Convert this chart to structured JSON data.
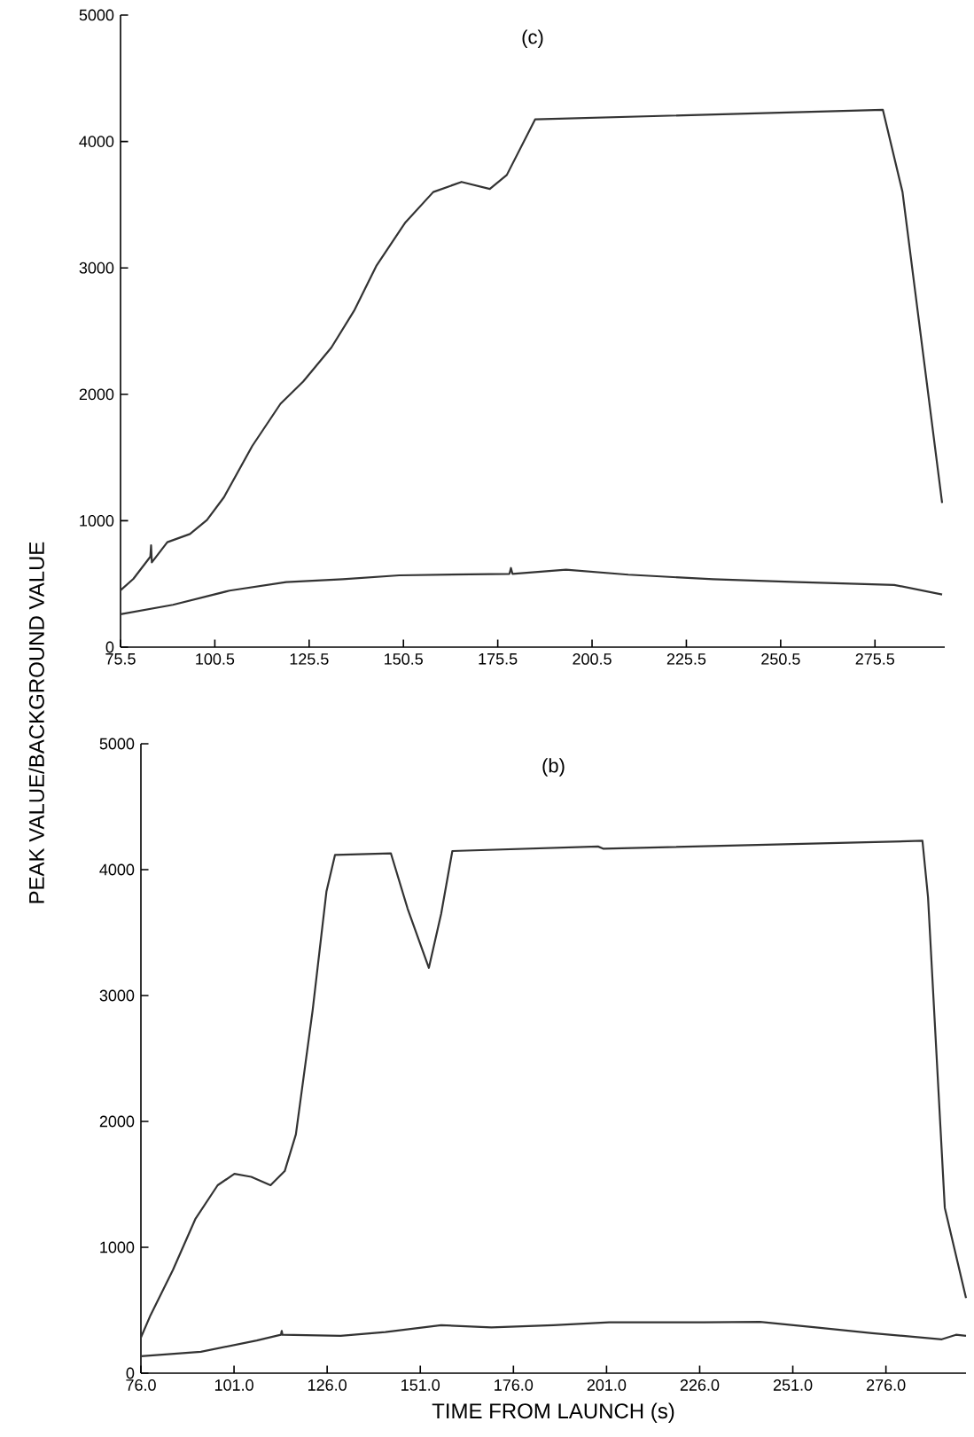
{
  "chart_data": [
    {
      "type": "line",
      "title": "(c)",
      "ylabel": "PEAK VALUE/BACKGROUND VALUE",
      "xlim": [
        75.5,
        294
      ],
      "ylim": [
        0,
        5000
      ],
      "xticks": [
        {
          "value": 75.5,
          "label": "75.5"
        },
        {
          "value": 100.5,
          "label": "100.5"
        },
        {
          "value": 125.5,
          "label": "125.5"
        },
        {
          "value": 150.5,
          "label": "150.5"
        },
        {
          "value": 175.5,
          "label": "175.5"
        },
        {
          "value": 200.5,
          "label": "200.5"
        },
        {
          "value": 225.5,
          "label": "225.5"
        },
        {
          "value": 250.5,
          "label": "250.5"
        },
        {
          "value": 275.5,
          "label": "275.5"
        }
      ],
      "yticks": [
        0,
        1000,
        2000,
        3000,
        4000,
        5000
      ],
      "grid": false,
      "marker": "none",
      "line_style": "solid",
      "series": [
        {
          "color": "#333333",
          "x": [
            75.5,
            78.9,
            83.4,
            83.6,
            83.8,
            87.9,
            93.9,
            98.4,
            102.9,
            110.4,
            117.9,
            123.9,
            131.4,
            137.4,
            143.4,
            150.9,
            158.4,
            165.9,
            173.4,
            177.9,
            185.4,
            277.6,
            282.8,
            293.3
          ],
          "values": [
            450,
            540,
            715,
            805,
            670,
            830,
            895,
            1005,
            1185,
            1590,
            1925,
            2100,
            2370,
            2660,
            3020,
            3355,
            3600,
            3680,
            3625,
            3735,
            4175,
            4250,
            3600,
            1140
          ]
        },
        {
          "color": "#333333",
          "x": [
            75.5,
            89.4,
            104.4,
            119.4,
            134.4,
            149.4,
            178.6,
            179.0,
            179.4,
            193.6,
            210.1,
            232.6,
            255.1,
            280.6,
            293.3
          ],
          "values": [
            260,
            335,
            447,
            515,
            537,
            568,
            580,
            626,
            580,
            613,
            573,
            537,
            515,
            492,
            416
          ]
        }
      ]
    },
    {
      "type": "line",
      "title": "(b)",
      "xlabel": "TIME FROM LAUNCH (s)",
      "xlim": [
        76,
        297.5
      ],
      "ylim": [
        0,
        5000
      ],
      "xticks": [
        {
          "value": 76,
          "label": "76.0"
        },
        {
          "value": 101,
          "label": "101.0"
        },
        {
          "value": 126,
          "label": "126.0"
        },
        {
          "value": 151,
          "label": "151.0"
        },
        {
          "value": 176,
          "label": "176.0"
        },
        {
          "value": 201,
          "label": "201.0"
        },
        {
          "value": 226,
          "label": "226.0"
        },
        {
          "value": 251,
          "label": "251.0"
        },
        {
          "value": 276,
          "label": "276.0"
        }
      ],
      "yticks": [
        0,
        1000,
        2000,
        3000,
        4000,
        5000
      ],
      "grid": false,
      "marker": "none",
      "line_style": "solid",
      "series": [
        {
          "color": "#333333",
          "x": [
            76,
            78.6,
            84.6,
            90.6,
            96.6,
            101.1,
            105.6,
            110.8,
            114.6,
            117.6,
            122.1,
            125.8,
            128.1,
            143.1,
            147.6,
            153.3,
            156.6,
            159.6,
            198.7,
            200.2,
            285.8,
            287.3,
            291.8,
            297.5
          ],
          "values": [
            283,
            462,
            820,
            1224,
            1493,
            1583,
            1560,
            1493,
            1605,
            1897,
            2883,
            3825,
            4117,
            4130,
            3690,
            3220,
            3650,
            4148,
            4184,
            4166,
            4229,
            3780,
            1314,
            596
          ]
        },
        {
          "color": "#333333",
          "x": [
            76,
            92.1,
            107.1,
            113.6,
            113.8,
            114.0,
            129.6,
            141.6,
            156.6,
            170.1,
            186.7,
            201.7,
            227.2,
            242.2,
            257.2,
            272.3,
            291.0,
            294.8,
            297.5
          ],
          "values": [
            135,
            170,
            260,
            305,
            336,
            305,
            296,
            327,
            381,
            363,
            381,
            404,
            404,
            408,
            363,
            318,
            269,
            305,
            296
          ]
        }
      ]
    }
  ]
}
